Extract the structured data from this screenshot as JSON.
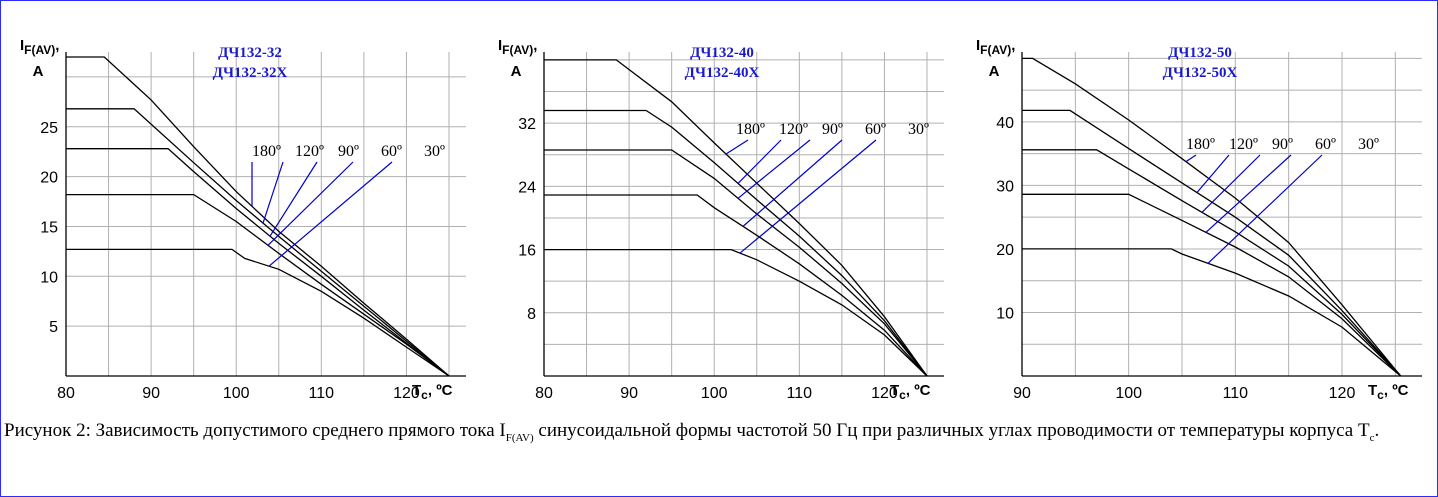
{
  "caption": {
    "part1": "Рисунок 2: Зависимость допустимого среднего прямого тока I",
    "sub1": "F(AV)",
    "part2": " синусоидальной формы частотой 50 Гц при различных углах проводимости от температуры корпуса T",
    "sub2": "c",
    "part3": "."
  },
  "colors": {
    "curve": "#000000",
    "leader": "#0000cc",
    "title": "#1a1acc",
    "grid": "#b0b0b0"
  },
  "chart_data": [
    {
      "type": "line",
      "title_lines": [
        "ДЧ132-32",
        "ДЧ132-32Х"
      ],
      "ylabel_main": "I",
      "ylabel_sub": "F(AV)",
      "ylabel_tail": ",",
      "ylabel_unit": "A",
      "xlabel_main": "T",
      "xlabel_sub": "c",
      "xlabel_unit": ", ºC",
      "xlim": [
        80,
        127
      ],
      "ylim": [
        0,
        32.5
      ],
      "xticks": [
        80,
        90,
        100,
        110,
        120
      ],
      "yticks": [
        5,
        10,
        15,
        20,
        25
      ],
      "xgrid": [
        85,
        90,
        95,
        100,
        105,
        110,
        115,
        120,
        125
      ],
      "ygrid": [
        5,
        10,
        15,
        20,
        25,
        30
      ],
      "grid": true,
      "angle_labels": [
        "180º",
        "120º",
        "90º",
        "60º",
        "30º"
      ],
      "series": [
        {
          "name": "180º",
          "points": [
            [
              80,
              32
            ],
            [
              84.5,
              32
            ],
            [
              90,
              27.7
            ],
            [
              95,
              23
            ],
            [
              100,
              18.5
            ],
            [
              105,
              14.5
            ],
            [
              110,
              11
            ],
            [
              115,
              7.3
            ],
            [
              120,
              3.7
            ],
            [
              125,
              0
            ]
          ]
        },
        {
          "name": "120º",
          "points": [
            [
              80,
              26.8
            ],
            [
              88,
              26.8
            ],
            [
              95,
              21.4
            ],
            [
              100,
              17.6
            ],
            [
              105,
              14
            ],
            [
              110,
              10.5
            ],
            [
              115,
              7
            ],
            [
              120,
              3.5
            ],
            [
              125,
              0
            ]
          ]
        },
        {
          "name": "90º",
          "points": [
            [
              80,
              22.8
            ],
            [
              92,
              22.8
            ],
            [
              95,
              20.5
            ],
            [
              100,
              16.8
            ],
            [
              105,
              13.3
            ],
            [
              110,
              10
            ],
            [
              115,
              6.6
            ],
            [
              120,
              3.3
            ],
            [
              125,
              0
            ]
          ]
        },
        {
          "name": "60º",
          "points": [
            [
              80,
              18.2
            ],
            [
              95,
              18.2
            ],
            [
              100,
              15.5
            ],
            [
              105,
              12.3
            ],
            [
              110,
              9.2
            ],
            [
              115,
              6.2
            ],
            [
              120,
              3.2
            ],
            [
              125,
              0
            ]
          ]
        },
        {
          "name": "30º",
          "points": [
            [
              80,
              12.7
            ],
            [
              99.5,
              12.7
            ],
            [
              101,
              11.8
            ],
            [
              105,
              10.7
            ],
            [
              110,
              8.5
            ],
            [
              115,
              5.8
            ],
            [
              120,
              2.9
            ],
            [
              125,
              0
            ]
          ]
        }
      ]
    },
    {
      "type": "line",
      "title_lines": [
        "ДЧ132-40",
        "ДЧ132-40Х"
      ],
      "ylabel_main": "I",
      "ylabel_sub": "F(AV)",
      "ylabel_tail": ",",
      "ylabel_unit": "A",
      "xlabel_main": "T",
      "xlabel_sub": "c",
      "xlabel_unit": ", ºC",
      "xlim": [
        80,
        127
      ],
      "ylim": [
        0,
        41
      ],
      "xticks": [
        80,
        90,
        100,
        110,
        120
      ],
      "yticks": [
        8,
        16,
        24,
        32
      ],
      "xgrid": [
        85,
        90,
        95,
        100,
        105,
        110,
        115,
        120,
        125
      ],
      "ygrid": [
        4,
        8,
        12,
        16,
        20,
        24,
        28,
        32,
        36,
        40
      ],
      "grid": true,
      "angle_labels": [
        "180º",
        "120º",
        "90º",
        "60º",
        "30º"
      ],
      "series": [
        {
          "name": "180º",
          "points": [
            [
              80,
              40
            ],
            [
              88.5,
              40
            ],
            [
              95,
              34.7
            ],
            [
              100,
              29.5
            ],
            [
              105,
              24.4
            ],
            [
              110,
              19.3
            ],
            [
              115,
              14
            ],
            [
              120,
              7.5
            ],
            [
              125,
              0
            ]
          ]
        },
        {
          "name": "120º",
          "points": [
            [
              80,
              33.6
            ],
            [
              92,
              33.6
            ],
            [
              95,
              31.5
            ],
            [
              100,
              27
            ],
            [
              105,
              22.3
            ],
            [
              110,
              17.7
            ],
            [
              115,
              12.7
            ],
            [
              120,
              7
            ],
            [
              125,
              0
            ]
          ]
        },
        {
          "name": "90º",
          "points": [
            [
              80,
              28.6
            ],
            [
              95,
              28.6
            ],
            [
              100,
              25
            ],
            [
              105,
              20.5
            ],
            [
              110,
              16.3
            ],
            [
              115,
              11.7
            ],
            [
              120,
              6.6
            ],
            [
              125,
              0
            ]
          ]
        },
        {
          "name": "60º",
          "points": [
            [
              80,
              22.9
            ],
            [
              98,
              22.9
            ],
            [
              100,
              21.3
            ],
            [
              105,
              17.8
            ],
            [
              110,
              14.2
            ],
            [
              115,
              10.2
            ],
            [
              120,
              5.8
            ],
            [
              125,
              0
            ]
          ]
        },
        {
          "name": "30º",
          "points": [
            [
              80,
              16
            ],
            [
              102,
              16
            ],
            [
              105,
              14.7
            ],
            [
              110,
              12
            ],
            [
              115,
              9
            ],
            [
              120,
              5.2
            ],
            [
              125,
              0
            ]
          ]
        }
      ]
    },
    {
      "type": "line",
      "title_lines": [
        "ДЧ132-50",
        "ДЧ132-50Х"
      ],
      "ylabel_main": "I",
      "ylabel_sub": "F(AV)",
      "ylabel_tail": ",",
      "ylabel_unit": "A",
      "xlabel_main": "T",
      "xlabel_sub": "c",
      "xlabel_unit": ", ºC",
      "xlim": [
        90,
        127.5
      ],
      "ylim": [
        0,
        51
      ],
      "xticks": [
        90,
        100,
        110,
        120
      ],
      "yticks": [
        10,
        20,
        30,
        40
      ],
      "xgrid": [
        95,
        100,
        105,
        110,
        115,
        120,
        125
      ],
      "ygrid": [
        5,
        10,
        15,
        20,
        25,
        30,
        35,
        40,
        45,
        50
      ],
      "grid": true,
      "angle_labels": [
        "180º",
        "120º",
        "90º",
        "60º",
        "30º"
      ],
      "series": [
        {
          "name": "180º",
          "points": [
            [
              90,
              50
            ],
            [
              91,
              50
            ],
            [
              95,
              46
            ],
            [
              100,
              40.3
            ],
            [
              105,
              34.2
            ],
            [
              110,
              28
            ],
            [
              115,
              21
            ],
            [
              120,
              11.2
            ],
            [
              125.5,
              0
            ]
          ]
        },
        {
          "name": "120º",
          "points": [
            [
              90,
              41.8
            ],
            [
              94.5,
              41.8
            ],
            [
              100,
              35.8
            ],
            [
              105,
              30.4
            ],
            [
              110,
              25
            ],
            [
              115,
              19
            ],
            [
              120,
              10.3
            ],
            [
              125.5,
              0
            ]
          ]
        },
        {
          "name": "90º",
          "points": [
            [
              90,
              35.6
            ],
            [
              97,
              35.6
            ],
            [
              100,
              32.6
            ],
            [
              105,
              27.6
            ],
            [
              110,
              22.7
            ],
            [
              115,
              17.3
            ],
            [
              120,
              9.7
            ],
            [
              125.5,
              0
            ]
          ]
        },
        {
          "name": "60º",
          "points": [
            [
              90,
              28.6
            ],
            [
              100,
              28.6
            ],
            [
              105,
              24.5
            ],
            [
              110,
              20.3
            ],
            [
              115,
              15.6
            ],
            [
              120,
              9
            ],
            [
              125.5,
              0
            ]
          ]
        },
        {
          "name": "30º",
          "points": [
            [
              90,
              20
            ],
            [
              104,
              20
            ],
            [
              105,
              19.2
            ],
            [
              110,
              16.2
            ],
            [
              115,
              12.6
            ],
            [
              120,
              7.7
            ],
            [
              125.5,
              0
            ]
          ]
        }
      ]
    }
  ]
}
